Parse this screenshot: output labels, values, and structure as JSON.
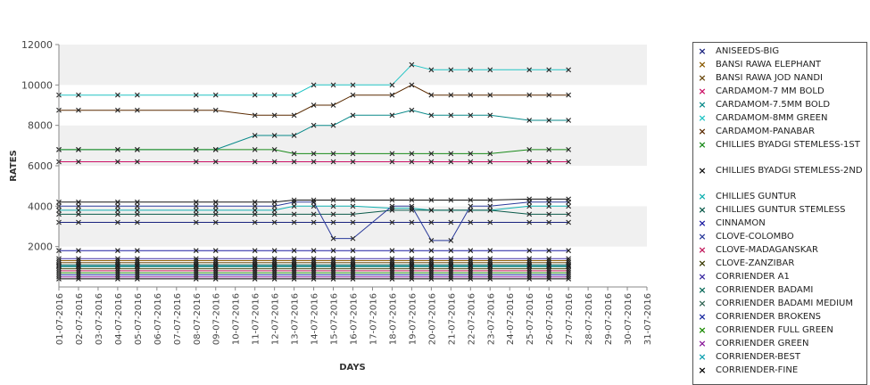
{
  "chart_data": {
    "type": "line",
    "xlabel": "DAYS",
    "ylabel": "RATES",
    "ylim": [
      0,
      12000
    ],
    "yticks": [
      2000,
      4000,
      6000,
      8000,
      10000,
      12000
    ],
    "x_ticks": [
      "01-07-2016",
      "02-07-2016",
      "03-07-2016",
      "04-07-2016",
      "05-07-2016",
      "06-07-2016",
      "07-07-2016",
      "08-07-2016",
      "09-07-2016",
      "10-07-2016",
      "11-07-2016",
      "12-07-2016",
      "13-07-2016",
      "14-07-2016",
      "15-07-2016",
      "16-07-2016",
      "17-07-2016",
      "18-07-2016",
      "19-07-2016",
      "20-07-2016",
      "21-07-2016",
      "22-07-2016",
      "23-07-2016",
      "24-07-2016",
      "25-07-2016",
      "26-07-2016",
      "27-07-2016",
      "28-07-2016",
      "29-07-2016",
      "30-07-2016",
      "31-07-2016"
    ],
    "x": [
      "01-07-2016",
      "02-07-2016",
      "04-07-2016",
      "05-07-2016",
      "08-07-2016",
      "09-07-2016",
      "11-07-2016",
      "12-07-2016",
      "13-07-2016",
      "14-07-2016",
      "15-07-2016",
      "16-07-2016",
      "18-07-2016",
      "19-07-2016",
      "20-07-2016",
      "21-07-2016",
      "22-07-2016",
      "23-07-2016",
      "25-07-2016",
      "26-07-2016",
      "27-07-2016"
    ],
    "grid": "horizontal bands",
    "legend_position": "right",
    "series": [
      {
        "name": "ANISEEDS-BIG",
        "color": "#1a237e",
        "values": [
          3200,
          3200,
          3200,
          3200,
          3200,
          3200,
          3200,
          3200,
          3200,
          3200,
          3200,
          3200,
          3200,
          3200,
          3200,
          3200,
          3200,
          3200,
          3200,
          3200,
          3200
        ]
      },
      {
        "name": "BANSI RAWA ELEPHANT",
        "color": "#8a5a00",
        "values": [
          1300,
          1300,
          1300,
          1300,
          1300,
          1300,
          1300,
          1300,
          1300,
          1300,
          1300,
          1300,
          1300,
          1300,
          1300,
          1300,
          1300,
          1300,
          1300,
          1300,
          1300
        ]
      },
      {
        "name": "BANSI RAWA JOD NANDI",
        "color": "#6b4a10",
        "values": [
          1200,
          1200,
          1200,
          1200,
          1200,
          1200,
          1200,
          1200,
          1200,
          1200,
          1200,
          1200,
          1200,
          1200,
          1200,
          1200,
          1200,
          1200,
          1200,
          1200,
          1200
        ]
      },
      {
        "name": "CARDAMOM-7 MM BOLD",
        "color": "#cc1166",
        "values": [
          6200,
          6200,
          6200,
          6200,
          6200,
          6200,
          6200,
          6200,
          6200,
          6200,
          6200,
          6200,
          6200,
          6200,
          6200,
          6200,
          6200,
          6200,
          6200,
          6200,
          6200
        ]
      },
      {
        "name": "CARDAMOM-7.5MM BOLD",
        "color": "#0a8a8a",
        "values": [
          6800,
          6800,
          6800,
          6800,
          6800,
          6800,
          7500,
          7500,
          7500,
          8000,
          8000,
          8500,
          8500,
          8750,
          8500,
          8500,
          8500,
          8500,
          8250,
          8250,
          8250
        ]
      },
      {
        "name": "CARDAMOM-8MM GREEN",
        "color": "#22c4c4",
        "values": [
          9500,
          9500,
          9500,
          9500,
          9500,
          9500,
          9500,
          9500,
          9500,
          10000,
          10000,
          10000,
          10000,
          11000,
          10750,
          10750,
          10750,
          10750,
          10750,
          10750,
          10750
        ]
      },
      {
        "name": "CARDAMOM-PANABAR",
        "color": "#5a2a00",
        "values": [
          8750,
          8750,
          8750,
          8750,
          8750,
          8750,
          8500,
          8500,
          8500,
          9000,
          9000,
          9500,
          9500,
          10000,
          9500,
          9500,
          9500,
          9500,
          9500,
          9500,
          9500
        ]
      },
      {
        "name": "CHILLIES BYADGI STEMLESS-1ST",
        "color": "#1a8a1a",
        "values": [
          6800,
          6800,
          6800,
          6800,
          6800,
          6800,
          6800,
          6800,
          6600,
          6600,
          6600,
          6600,
          6600,
          6600,
          6600,
          6600,
          6600,
          6600,
          6800,
          6800,
          6800
        ]
      },
      {
        "name": "CHILLIES BYADGI STEMLESS-2ND",
        "color": "#111111",
        "values": [
          4200,
          4200,
          4200,
          4200,
          4200,
          4200,
          4200,
          4200,
          4300,
          4300,
          4300,
          4300,
          4300,
          4300,
          4300,
          4300,
          4300,
          4300,
          4350,
          4350,
          4350
        ]
      },
      {
        "name": "CHILLIES GUNTUR",
        "color": "#10b0b0",
        "values": [
          3800,
          3800,
          3800,
          3800,
          3800,
          3800,
          3800,
          3800,
          4000,
          4000,
          4000,
          4000,
          3900,
          3900,
          3800,
          3800,
          3800,
          3800,
          4000,
          4000,
          4000
        ]
      },
      {
        "name": "CHILLIES GUNTUR STEMLESS",
        "color": "#0a5a4a",
        "values": [
          3600,
          3600,
          3600,
          3600,
          3600,
          3600,
          3600,
          3600,
          3600,
          3600,
          3600,
          3600,
          3800,
          3800,
          3800,
          3800,
          3800,
          3800,
          3600,
          3600,
          3600
        ]
      },
      {
        "name": "CINNAMON",
        "color": "#1a1aa0",
        "values": [
          1800,
          1800,
          1800,
          1800,
          1800,
          1800,
          1800,
          1800,
          1800,
          1800,
          1800,
          1800,
          1800,
          1800,
          1800,
          1800,
          1800,
          1800,
          1800,
          1800,
          1800
        ]
      },
      {
        "name": "CLOVE-COLOMBO",
        "color": "#2a3a9a",
        "values": [
          4000,
          4000,
          4000,
          4000,
          4000,
          4000,
          4000,
          4000,
          4200,
          4200,
          2400,
          2400,
          4000,
          4000,
          2300,
          2300,
          4000,
          4000,
          4200,
          4200,
          4200
        ]
      },
      {
        "name": "CLOVE-MADAGANSKAR",
        "color": "#c2185b",
        "values": [
          800,
          800,
          800,
          800,
          800,
          800,
          800,
          800,
          800,
          800,
          800,
          800,
          800,
          800,
          800,
          800,
          800,
          800,
          800,
          800,
          800
        ]
      },
      {
        "name": "CLOVE-ZANZIBAR",
        "color": "#3a3a00",
        "values": [
          900,
          900,
          900,
          900,
          900,
          900,
          900,
          900,
          900,
          900,
          900,
          900,
          900,
          900,
          900,
          900,
          900,
          900,
          900,
          900,
          900
        ]
      },
      {
        "name": "CORRIENDER A1",
        "color": "#3a2aa0",
        "values": [
          1400,
          1400,
          1400,
          1400,
          1400,
          1400,
          1400,
          1400,
          1400,
          1400,
          1400,
          1400,
          1400,
          1400,
          1400,
          1400,
          1400,
          1400,
          1400,
          1400,
          1400
        ]
      },
      {
        "name": "CORRIENDER BADAMI",
        "color": "#0a6a5a",
        "values": [
          1000,
          1000,
          1000,
          1000,
          1000,
          1000,
          1000,
          1000,
          1000,
          1000,
          1000,
          1000,
          1000,
          1000,
          1000,
          1000,
          1000,
          1000,
          1000,
          1000,
          1000
        ]
      },
      {
        "name": "CORRIENDER BADAMI MEDIUM",
        "color": "#336655",
        "values": [
          1100,
          1100,
          1100,
          1100,
          1100,
          1100,
          1100,
          1100,
          1100,
          1100,
          1100,
          1100,
          1100,
          1100,
          1100,
          1100,
          1100,
          1100,
          1100,
          1100,
          1100
        ]
      },
      {
        "name": "CORRIENDER BROKENS",
        "color": "#1a2aa0",
        "values": [
          600,
          600,
          600,
          600,
          600,
          600,
          600,
          600,
          600,
          600,
          600,
          600,
          600,
          600,
          600,
          600,
          600,
          600,
          600,
          600,
          600
        ]
      },
      {
        "name": "CORRIENDER FULL GREEN",
        "color": "#1a8a00",
        "values": [
          700,
          700,
          700,
          700,
          700,
          700,
          700,
          700,
          700,
          700,
          700,
          700,
          700,
          700,
          700,
          700,
          700,
          700,
          700,
          700,
          700
        ]
      },
      {
        "name": "CORRIENDER GREEN",
        "color": "#8a1a9a",
        "values": [
          500,
          500,
          500,
          500,
          500,
          500,
          500,
          500,
          500,
          500,
          500,
          500,
          500,
          500,
          500,
          500,
          500,
          500,
          500,
          500,
          500
        ]
      },
      {
        "name": "CORRIENDER-BEST",
        "color": "#10a0b0",
        "values": [
          1050,
          1050,
          1050,
          1050,
          1050,
          1050,
          1050,
          1050,
          1050,
          1050,
          1050,
          1050,
          1050,
          1050,
          1050,
          1050,
          1050,
          1050,
          1050,
          1050,
          1050
        ]
      },
      {
        "name": "CORRIENDER-FINE",
        "color": "#000000",
        "values": [
          400,
          400,
          400,
          400,
          400,
          400,
          400,
          400,
          400,
          400,
          400,
          400,
          400,
          400,
          400,
          400,
          400,
          400,
          400,
          400,
          400
        ]
      }
    ]
  }
}
